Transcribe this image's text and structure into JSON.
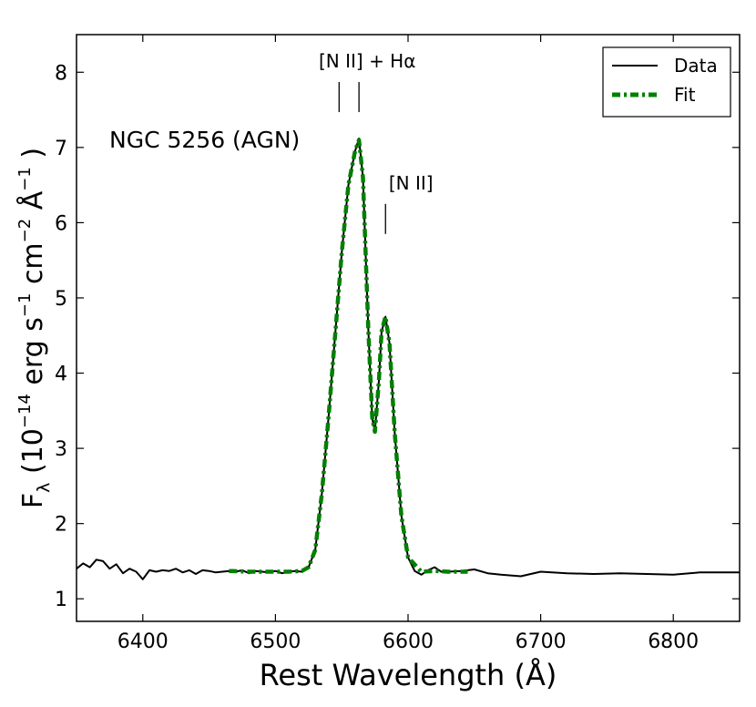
{
  "chart_data": {
    "type": "line",
    "xlabel": "Rest Wavelength (Å)",
    "ylabel": {
      "prefix": "F",
      "subscript": "λ",
      "unit_open": " (10",
      "unit_exp1": "−14",
      "unit_mid1": " erg s",
      "unit_exp2": "−1",
      "unit_mid2": " cm",
      "unit_exp3": "−2",
      "unit_mid3": " Å",
      "unit_exp4": "−1",
      "unit_close": " )"
    },
    "xlim": [
      6350,
      6850
    ],
    "ylim": [
      0.7,
      8.5
    ],
    "xticks": [
      6400,
      6500,
      6600,
      6700,
      6800
    ],
    "yticks": [
      1,
      2,
      3,
      4,
      5,
      6,
      7,
      8
    ],
    "object_label": "NGC 5256  (AGN)",
    "annotations": [
      {
        "text": "[N II] + Hα",
        "ticks": [
          6548,
          6563
        ],
        "tick_range": [
          7.47,
          7.87
        ]
      },
      {
        "text": "[N II]",
        "ticks": [
          6583
        ],
        "tick_range": [
          5.85,
          6.25
        ]
      }
    ],
    "legend": {
      "position": "top-right",
      "entries": [
        "Data",
        "Fit"
      ]
    },
    "series": [
      {
        "name": "Data",
        "color": "#000000",
        "style": "solid",
        "x": [
          6350,
          6355,
          6360,
          6365,
          6370,
          6375,
          6380,
          6385,
          6390,
          6395,
          6400,
          6405,
          6410,
          6415,
          6420,
          6425,
          6430,
          6435,
          6440,
          6445,
          6450,
          6455,
          6460,
          6465,
          6470,
          6475,
          6480,
          6485,
          6490,
          6495,
          6500,
          6505,
          6510,
          6515,
          6520,
          6525,
          6530,
          6535,
          6540,
          6545,
          6550,
          6555,
          6560,
          6563,
          6566,
          6570,
          6573,
          6575,
          6578,
          6580,
          6583,
          6586,
          6590,
          6595,
          6600,
          6605,
          6610,
          6615,
          6620,
          6625,
          6630,
          6640,
          6650,
          6660,
          6670,
          6685,
          6700,
          6720,
          6740,
          6760,
          6780,
          6800,
          6820,
          6850
        ],
        "y": [
          1.4,
          1.47,
          1.42,
          1.52,
          1.5,
          1.4,
          1.46,
          1.34,
          1.4,
          1.36,
          1.26,
          1.38,
          1.36,
          1.38,
          1.37,
          1.4,
          1.35,
          1.38,
          1.33,
          1.38,
          1.37,
          1.35,
          1.36,
          1.37,
          1.36,
          1.38,
          1.34,
          1.37,
          1.36,
          1.35,
          1.37,
          1.34,
          1.36,
          1.37,
          1.36,
          1.42,
          1.65,
          2.4,
          3.4,
          4.5,
          5.6,
          6.5,
          6.95,
          7.12,
          6.6,
          4.6,
          3.4,
          3.22,
          3.9,
          4.55,
          4.75,
          4.4,
          3.2,
          2.1,
          1.55,
          1.37,
          1.32,
          1.38,
          1.42,
          1.36,
          1.36,
          1.37,
          1.39,
          1.34,
          1.32,
          1.3,
          1.36,
          1.34,
          1.33,
          1.34,
          1.33,
          1.32,
          1.35,
          1.35
        ]
      },
      {
        "name": "Fit",
        "color": "#008000",
        "style": "dash-dot",
        "x": [
          6465,
          6480,
          6495,
          6510,
          6520,
          6525,
          6530,
          6535,
          6540,
          6545,
          6550,
          6555,
          6560,
          6563,
          6566,
          6570,
          6573,
          6575,
          6578,
          6580,
          6583,
          6586,
          6590,
          6595,
          6600,
          6610,
          6620,
          6630,
          6645
        ],
        "y": [
          1.37,
          1.36,
          1.36,
          1.36,
          1.37,
          1.42,
          1.65,
          2.4,
          3.4,
          4.5,
          5.6,
          6.5,
          6.95,
          7.1,
          6.6,
          4.6,
          3.4,
          3.22,
          3.9,
          4.55,
          4.75,
          4.4,
          3.2,
          2.1,
          1.55,
          1.36,
          1.37,
          1.36,
          1.36
        ]
      }
    ]
  }
}
